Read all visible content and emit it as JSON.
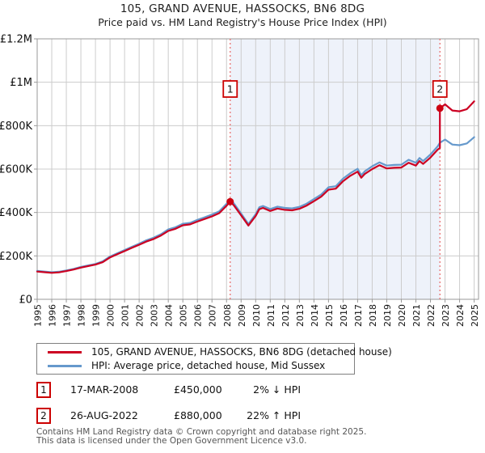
{
  "header": {
    "title": "105, GRAND AVENUE, HASSOCKS, BN6 8DG",
    "subtitle": "Price paid vs. HM Land Registry's House Price Index (HPI)"
  },
  "chart_data": {
    "type": "line",
    "title": "105, GRAND AVENUE, HASSOCKS, BN6 8DG",
    "subtitle": "Price paid vs. HM Land Registry's House Price Index (HPI)",
    "units": "GBP thousands",
    "grid": true,
    "colors": {
      "grid": "#cccccc",
      "border": "#999999",
      "shade": "#eef2fa",
      "dashed_sale_line": "#e87070",
      "marker_box_border": "#cc0000"
    },
    "x_axis": {
      "range": [
        1995,
        2025.3
      ],
      "ticks": [
        1995,
        1996,
        1997,
        1998,
        1999,
        2000,
        2001,
        2002,
        2003,
        2004,
        2005,
        2006,
        2007,
        2008,
        2009,
        2010,
        2011,
        2012,
        2013,
        2014,
        2015,
        2016,
        2017,
        2018,
        2019,
        2020,
        2021,
        2022,
        2023,
        2024,
        2025
      ]
    },
    "y_axis": {
      "range": [
        0,
        1200
      ],
      "ticks": [
        {
          "value": 0,
          "label": "£0"
        },
        {
          "value": 200,
          "label": "£200K"
        },
        {
          "value": 400,
          "label": "£400K"
        },
        {
          "value": 600,
          "label": "£600K"
        },
        {
          "value": 800,
          "label": "£800K"
        },
        {
          "value": 1000,
          "label": "£1M"
        },
        {
          "value": 1200,
          "label": "£1.2M"
        }
      ]
    },
    "shaded_region": {
      "from": 2008.25,
      "to": 2022.65
    },
    "series": [
      {
        "name": "HPI: Average price, detached house, Mid Sussex",
        "color": "#6699cc",
        "points": [
          [
            1995,
            131
          ],
          [
            1995.5,
            128
          ],
          [
            1996,
            125
          ],
          [
            1996.5,
            127
          ],
          [
            1997,
            133
          ],
          [
            1997.5,
            140
          ],
          [
            1998,
            149
          ],
          [
            1998.5,
            156
          ],
          [
            1999,
            163
          ],
          [
            1999.5,
            175
          ],
          [
            2000,
            197
          ],
          [
            2000.5,
            212
          ],
          [
            2001,
            227
          ],
          [
            2001.5,
            242
          ],
          [
            2002,
            256
          ],
          [
            2002.5,
            272
          ],
          [
            2003,
            284
          ],
          [
            2003.5,
            300
          ],
          [
            2004,
            322
          ],
          [
            2004.5,
            332
          ],
          [
            2005,
            348
          ],
          [
            2005.5,
            352
          ],
          [
            2006,
            366
          ],
          [
            2006.5,
            378
          ],
          [
            2007,
            390
          ],
          [
            2007.5,
            405
          ],
          [
            2008,
            440
          ],
          [
            2008.25,
            459
          ],
          [
            2008.5,
            442
          ],
          [
            2009,
            395
          ],
          [
            2009.5,
            347
          ],
          [
            2010,
            392
          ],
          [
            2010.25,
            424
          ],
          [
            2010.5,
            430
          ],
          [
            2011,
            416
          ],
          [
            2011.5,
            427
          ],
          [
            2012,
            421
          ],
          [
            2012.5,
            419
          ],
          [
            2013,
            426
          ],
          [
            2013.5,
            441
          ],
          [
            2014,
            462
          ],
          [
            2014.5,
            483
          ],
          [
            2015,
            516
          ],
          [
            2015.5,
            521
          ],
          [
            2016,
            556
          ],
          [
            2016.5,
            581
          ],
          [
            2017,
            601
          ],
          [
            2017.25,
            572
          ],
          [
            2017.5,
            590
          ],
          [
            2018,
            613
          ],
          [
            2018.5,
            631
          ],
          [
            2019,
            616
          ],
          [
            2019.5,
            619
          ],
          [
            2020,
            620
          ],
          [
            2020.5,
            643
          ],
          [
            2021,
            629
          ],
          [
            2021.25,
            651
          ],
          [
            2021.5,
            637
          ],
          [
            2022,
            667
          ],
          [
            2022.5,
            705
          ],
          [
            2022.65,
            721
          ],
          [
            2023,
            736
          ],
          [
            2023.5,
            713
          ],
          [
            2024,
            710
          ],
          [
            2024.5,
            718
          ],
          [
            2025,
            747
          ]
        ]
      },
      {
        "name": "105, GRAND AVENUE, HASSOCKS, BN6 8DG (detached house)",
        "color": "#cc0022",
        "points": [
          [
            1995,
            128
          ],
          [
            1995.5,
            125
          ],
          [
            1996,
            122
          ],
          [
            1996.5,
            124
          ],
          [
            1997,
            130
          ],
          [
            1997.5,
            137
          ],
          [
            1998,
            146
          ],
          [
            1998.5,
            153
          ],
          [
            1999,
            160
          ],
          [
            1999.5,
            171
          ],
          [
            2000,
            193
          ],
          [
            2000.5,
            208
          ],
          [
            2001,
            222
          ],
          [
            2001.5,
            237
          ],
          [
            2002,
            251
          ],
          [
            2002.5,
            266
          ],
          [
            2003,
            278
          ],
          [
            2003.5,
            294
          ],
          [
            2004,
            315
          ],
          [
            2004.5,
            325
          ],
          [
            2005,
            341
          ],
          [
            2005.5,
            345
          ],
          [
            2006,
            358
          ],
          [
            2006.5,
            370
          ],
          [
            2007,
            382
          ],
          [
            2007.5,
            397
          ],
          [
            2008,
            431
          ],
          [
            2008.25,
            450
          ],
          [
            2008.5,
            433
          ],
          [
            2009,
            387
          ],
          [
            2009.5,
            340
          ],
          [
            2010,
            384
          ],
          [
            2010.25,
            415
          ],
          [
            2010.5,
            421
          ],
          [
            2011,
            407
          ],
          [
            2011.5,
            418
          ],
          [
            2012,
            412
          ],
          [
            2012.5,
            410
          ],
          [
            2013,
            417
          ],
          [
            2013.5,
            432
          ],
          [
            2014,
            452
          ],
          [
            2014.5,
            473
          ],
          [
            2015,
            505
          ],
          [
            2015.5,
            510
          ],
          [
            2016,
            544
          ],
          [
            2016.5,
            569
          ],
          [
            2017,
            588
          ],
          [
            2017.25,
            560
          ],
          [
            2017.5,
            578
          ],
          [
            2018,
            600
          ],
          [
            2018.5,
            618
          ],
          [
            2019,
            603
          ],
          [
            2019.5,
            606
          ],
          [
            2020,
            607
          ],
          [
            2020.5,
            629
          ],
          [
            2021,
            616
          ],
          [
            2021.25,
            637
          ],
          [
            2021.5,
            624
          ],
          [
            2022,
            653
          ],
          [
            2022.5,
            690
          ],
          [
            2022.65,
            697
          ],
          [
            2022.65,
            880
          ],
          [
            2023,
            898
          ],
          [
            2023.5,
            870
          ],
          [
            2024,
            866
          ],
          [
            2024.5,
            876
          ],
          [
            2025,
            912
          ]
        ]
      }
    ],
    "markers": [
      {
        "label": "1",
        "year": 2008.25,
        "value": 450
      },
      {
        "label": "2",
        "year": 2022.65,
        "value": 880
      }
    ],
    "legend_position": "bottom"
  },
  "legend": {
    "items": [
      {
        "label": "105, GRAND AVENUE, HASSOCKS, BN6 8DG (detached house)",
        "color": "#cc0022"
      },
      {
        "label": "HPI: Average price, detached house, Mid Sussex",
        "color": "#6699cc"
      }
    ]
  },
  "annotations": [
    {
      "num": "1",
      "date": "17-MAR-2008",
      "price": "£450,000",
      "delta": "2% ↓ HPI"
    },
    {
      "num": "2",
      "date": "26-AUG-2022",
      "price": "£880,000",
      "delta": "22% ↑ HPI"
    }
  ],
  "footer": {
    "line1": "Contains HM Land Registry data © Crown copyright and database right 2025.",
    "line2": "This data is licensed under the Open Government Licence v3.0."
  }
}
